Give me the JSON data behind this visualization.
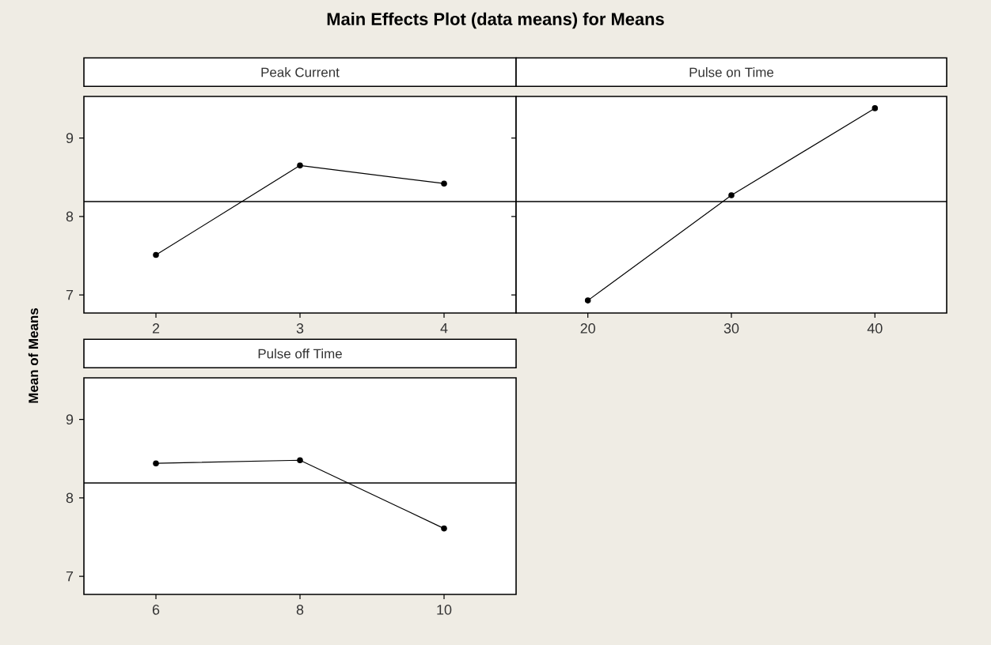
{
  "chart_data": [
    {
      "type": "line",
      "title": "Main Effects Plot (data means) for Means",
      "ylabel": "Mean of Means",
      "xlabel": "Peak Current",
      "x": [
        2,
        3,
        4
      ],
      "values": [
        7.51,
        8.65,
        8.42
      ],
      "color": "#000000",
      "marker": "circle",
      "line_style": "solid",
      "xlim": [
        1.5,
        4.5
      ],
      "xticks": [
        2,
        3,
        4
      ],
      "ylim": [
        6.77,
        9.53
      ],
      "yticks": [
        7,
        8,
        9
      ],
      "ref_lines": [
        {
          "axis": "y",
          "value": 8.19
        }
      ],
      "grid": false
    },
    {
      "type": "line",
      "xlabel": "Pulse on Time",
      "x": [
        20,
        30,
        40
      ],
      "values": [
        6.93,
        8.27,
        9.38
      ],
      "color": "#000000",
      "marker": "circle",
      "line_style": "solid",
      "xlim": [
        15,
        45
      ],
      "xticks": [
        20,
        30,
        40
      ],
      "ylim": [
        6.77,
        9.53
      ],
      "yticks": [
        7,
        8,
        9
      ],
      "tick_labels": "x",
      "ref_lines": [
        {
          "axis": "y",
          "value": 8.19
        }
      ],
      "grid": false
    },
    {
      "type": "line",
      "xlabel": "Pulse off Time",
      "x": [
        6,
        8,
        10
      ],
      "values": [
        8.44,
        8.48,
        7.61
      ],
      "color": "#000000",
      "marker": "circle",
      "line_style": "solid",
      "xlim": [
        5,
        11
      ],
      "xticks": [
        6,
        8,
        10
      ],
      "ylim": [
        6.77,
        9.53
      ],
      "yticks": [
        7,
        8,
        9
      ],
      "ref_lines": [
        {
          "axis": "y",
          "value": 8.19
        }
      ],
      "grid": false
    }
  ]
}
